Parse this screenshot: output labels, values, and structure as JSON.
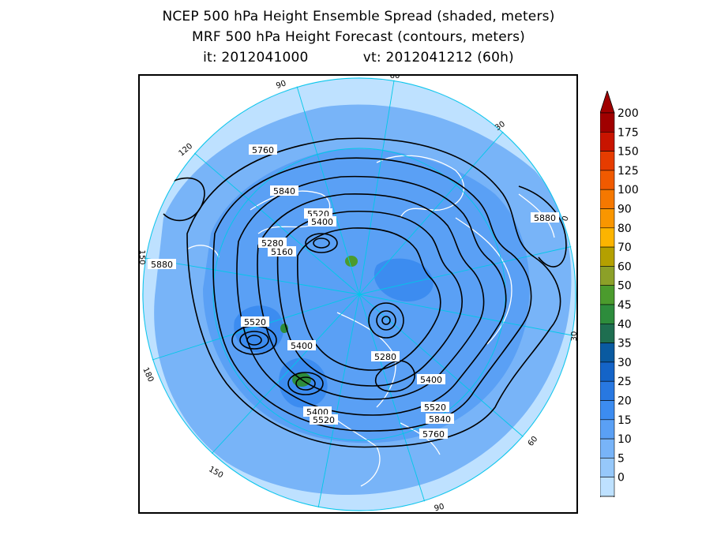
{
  "title": {
    "line1": "NCEP 500 hPa Height Ensemble Spread (shaded, meters)",
    "line2": "MRF 500 hPa Height Forecast (contours, meters)",
    "init_label": "it: 2012041000",
    "valid_label": "vt: 2012041212 (60h)"
  },
  "map": {
    "projection": "north-polar-stereographic",
    "meridian_labels": [
      "60",
      "30",
      "0",
      "30",
      "60",
      "90",
      "120",
      "150",
      "180",
      "150",
      "120",
      "90"
    ],
    "contour_labels": [
      "5760",
      "5840",
      "5520",
      "5400",
      "5280",
      "5160",
      "5880",
      "5880",
      "5520",
      "5400",
      "5280",
      "5400",
      "5400",
      "5520",
      "5520",
      "5840",
      "5760"
    ],
    "colors": {
      "land_outline": "#ffffff",
      "graticule": "#00c8e8",
      "contour": "#000000",
      "spread_low": "#b4dcff",
      "spread_mid": "#6eb4f0",
      "spread_high": "#3c8ce6"
    }
  },
  "colorbar": {
    "ticks": [
      "200",
      "175",
      "150",
      "125",
      "100",
      "90",
      "80",
      "70",
      "60",
      "50",
      "45",
      "40",
      "35",
      "30",
      "25",
      "20",
      "15",
      "10",
      "5",
      "0"
    ],
    "colors": [
      "#a00000",
      "#c81400",
      "#e63c00",
      "#f05a00",
      "#f57800",
      "#f99600",
      "#fcb400",
      "#b4a000",
      "#8ca028",
      "#4b9b2d",
      "#2d8c3c",
      "#1e6e50",
      "#0a5aa0",
      "#1464c8",
      "#2878e1",
      "#3c8cf0",
      "#5aa0f5",
      "#78b4f8",
      "#96c8fa",
      "#bee1ff"
    ]
  }
}
